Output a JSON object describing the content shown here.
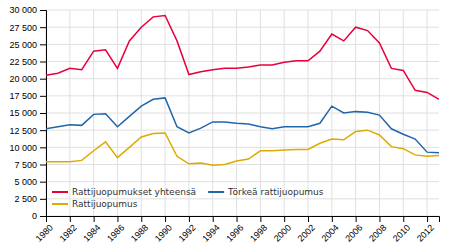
{
  "chart_data": {
    "type": "line",
    "x": [
      1980,
      1981,
      1982,
      1983,
      1984,
      1985,
      1986,
      1987,
      1988,
      1989,
      1990,
      1991,
      1992,
      1993,
      1994,
      1995,
      1996,
      1997,
      1998,
      1999,
      2000,
      2001,
      2002,
      2003,
      2004,
      2005,
      2006,
      2007,
      2008,
      2009,
      2010,
      2011,
      2012,
      2013
    ],
    "series": [
      {
        "name": "Rattijuopumukset yhteensä",
        "color": "#e8003d",
        "values": [
          20500,
          20800,
          21500,
          21300,
          24000,
          24200,
          21500,
          25500,
          27500,
          29000,
          29200,
          25500,
          20600,
          21000,
          21300,
          21500,
          21500,
          21700,
          22000,
          22000,
          22400,
          22600,
          22600,
          24000,
          26500,
          25500,
          27500,
          27000,
          25200,
          21500,
          21200,
          18300,
          18000,
          17000
        ]
      },
      {
        "name": "Törkeä rattijuopumus",
        "color": "#2266aa",
        "values": [
          12700,
          13000,
          13300,
          13200,
          14800,
          14900,
          13000,
          14500,
          16000,
          17000,
          17200,
          13000,
          12100,
          12800,
          13700,
          13700,
          13500,
          13400,
          13000,
          12700,
          13000,
          13000,
          13000,
          13500,
          16000,
          15000,
          15200,
          15100,
          14700,
          12700,
          11900,
          11200,
          9300,
          9200
        ]
      },
      {
        "name": "Rattijuopumus",
        "color": "#ddaa00",
        "values": [
          7900,
          7900,
          7900,
          8100,
          9500,
          10800,
          8500,
          10000,
          11500,
          12000,
          12100,
          8700,
          7600,
          7700,
          7400,
          7500,
          8000,
          8300,
          9500,
          9500,
          9600,
          9700,
          9700,
          10600,
          11200,
          11100,
          12300,
          12500,
          11800,
          10100,
          9800,
          8900,
          8700,
          8800
        ]
      }
    ],
    "xlim": [
      1980,
      2013
    ],
    "xticks": [
      1980,
      1982,
      1984,
      1986,
      1988,
      1990,
      1992,
      1994,
      1996,
      1998,
      2000,
      2002,
      2004,
      2006,
      2008,
      2010,
      2012
    ],
    "ylim": [
      0,
      30000
    ],
    "yticks": [
      0,
      {
        "value": 2500,
        "label": "2 500"
      },
      {
        "value": 5000,
        "label": "5 000"
      },
      {
        "value": 7500,
        "label": "7 500"
      },
      {
        "value": 10000,
        "label": "10 000"
      },
      {
        "value": 12500,
        "label": "12 500"
      },
      {
        "value": 15000,
        "label": "15 000"
      },
      {
        "value": 17500,
        "label": "17 500"
      },
      {
        "value": 20000,
        "label": "20 000"
      },
      {
        "value": 22500,
        "label": "22 500"
      },
      {
        "value": 25000,
        "label": "25 000"
      },
      {
        "value": 27500,
        "label": "27 500"
      },
      {
        "value": 30000,
        "label": "30 000"
      }
    ],
    "grid": true,
    "legend": "lower left"
  }
}
